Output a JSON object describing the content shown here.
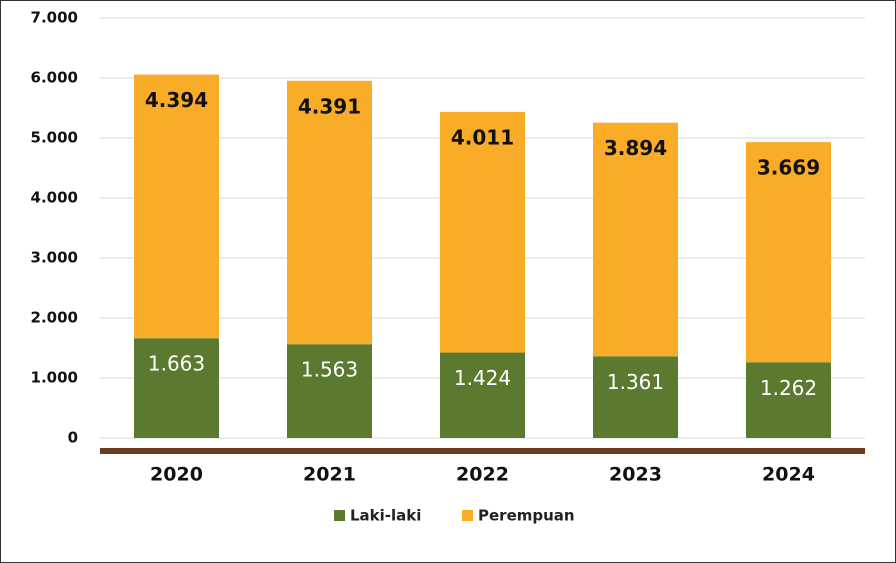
{
  "chart_data": {
    "type": "stacked_bar",
    "categories": [
      "2020",
      "2021",
      "2022",
      "2023",
      "2024"
    ],
    "series": [
      {
        "name": "Laki-laki",
        "color": "#5b7a2f",
        "values": [
          1663,
          1563,
          1424,
          1361,
          1262
        ],
        "value_labels": [
          "1.663",
          "1.563",
          "1.424",
          "1.361",
          "1.262"
        ]
      },
      {
        "name": "Perempuan",
        "color": "#f8ac27",
        "values": [
          4394,
          4391,
          4011,
          3894,
          3669
        ],
        "value_labels": [
          "4.394",
          "4.391",
          "4.011",
          "3.894",
          "3.669"
        ]
      }
    ],
    "ylim": [
      0,
      7000
    ],
    "yticks": [
      0,
      {
        "value": 1000,
        "label": "1.000"
      },
      {
        "value": 2000,
        "label": "2.000"
      },
      {
        "value": 3000,
        "label": "3.000"
      },
      {
        "value": 4000,
        "label": "4.000"
      },
      {
        "value": 5000,
        "label": "5.000"
      },
      {
        "value": 6000,
        "label": "6.000"
      },
      {
        "value": 7000,
        "label": "7.000"
      }
    ],
    "grid": true,
    "legend": "bottom"
  }
}
